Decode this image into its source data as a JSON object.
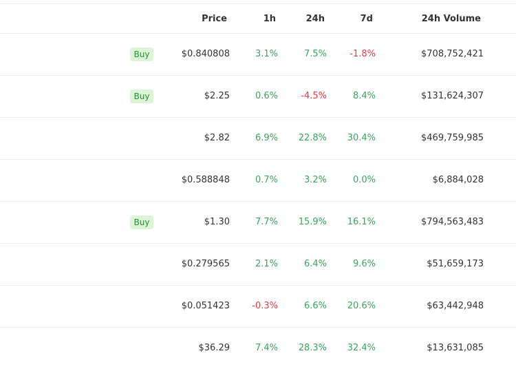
{
  "header": {
    "price": "Price",
    "h1": "1h",
    "h24": "24h",
    "d7": "7d",
    "volume": "24h Volume"
  },
  "buy_label": "Buy",
  "colors": {
    "positive": "#3ba55c",
    "negative": "#ea3943",
    "buy_bg": "#dcf5d6",
    "buy_text": "#2c8a3a"
  },
  "rows": [
    {
      "buy": true,
      "price": "$0.840808",
      "h1": "3.1%",
      "h24": "7.5%",
      "d7": "-1.8%",
      "volume": "$708,752,421"
    },
    {
      "buy": true,
      "price": "$2.25",
      "h1": "0.6%",
      "h24": "-4.5%",
      "d7": "8.4%",
      "volume": "$131,624,307"
    },
    {
      "buy": false,
      "price": "$2.82",
      "h1": "6.9%",
      "h24": "22.8%",
      "d7": "30.4%",
      "volume": "$469,759,985"
    },
    {
      "buy": false,
      "price": "$0.588848",
      "h1": "0.7%",
      "h24": "3.2%",
      "d7": "0.0%",
      "volume": "$6,884,028"
    },
    {
      "buy": true,
      "price": "$1.30",
      "h1": "7.7%",
      "h24": "15.9%",
      "d7": "16.1%",
      "volume": "$794,563,483"
    },
    {
      "buy": false,
      "price": "$0.279565",
      "h1": "2.1%",
      "h24": "6.4%",
      "d7": "9.6%",
      "volume": "$51,659,173"
    },
    {
      "buy": false,
      "price": "$0.051423",
      "h1": "-0.3%",
      "h24": "6.6%",
      "d7": "20.6%",
      "volume": "$63,442,948"
    },
    {
      "buy": false,
      "price": "$36.29",
      "h1": "7.4%",
      "h24": "28.3%",
      "d7": "32.4%",
      "volume": "$13,631,085"
    }
  ]
}
